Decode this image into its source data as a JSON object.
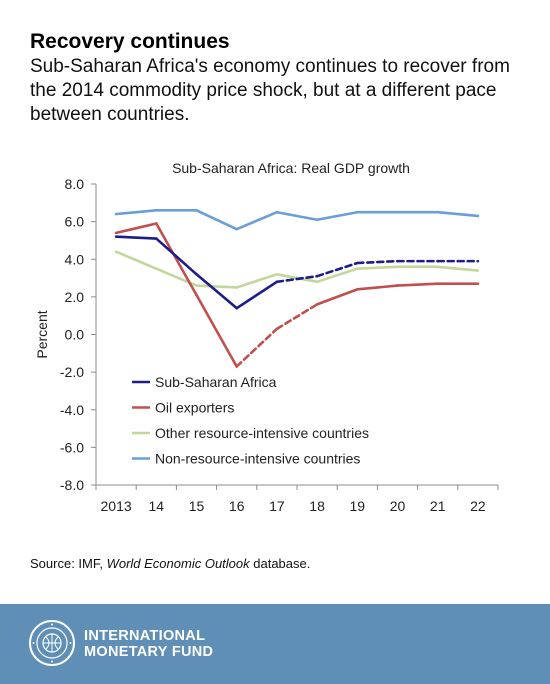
{
  "headline": "Recovery continues",
  "subhead": "Sub-Saharan Africa's economy continues to recover from the 2014 commodity price shock, but at a different pace between countries.",
  "source": {
    "prefix": "Source: IMF, ",
    "italic": "World Economic Outlook",
    "suffix": " database."
  },
  "footer": {
    "org_line1": "INTERNATIONAL",
    "org_line2": "MONETARY FUND",
    "background_color": "#5f8fb6",
    "logo_icon": "imf-seal-icon"
  },
  "chart_data": {
    "type": "line",
    "title": "Sub-Saharan Africa: Real GDP growth",
    "xlabel": "",
    "ylabel": "Percent",
    "categories": [
      "2013",
      "14",
      "15",
      "16",
      "17",
      "18",
      "19",
      "20",
      "21",
      "22"
    ],
    "ylim": [
      -8.0,
      8.0
    ],
    "yticks": [
      "8.0",
      "6.0",
      "4.0",
      "2.0",
      "0.0",
      "-2.0",
      "-4.0",
      "-6.0",
      "-8.0"
    ],
    "ytick_values": [
      8,
      6,
      4,
      2,
      0,
      -2,
      -4,
      -6,
      -8
    ],
    "grid": false,
    "legend_position": "bottom-left",
    "projection_note": "dashed segments for projections",
    "series": [
      {
        "name": "Sub-Saharan Africa",
        "color": "#1c1c8c",
        "values": [
          5.2,
          5.1,
          3.2,
          1.4,
          2.8,
          3.1,
          3.8,
          3.9,
          3.9,
          3.9
        ],
        "dashed_from_index": 5
      },
      {
        "name": "Oil exporters",
        "color": "#c0504d",
        "values": [
          5.4,
          5.9,
          2.1,
          -1.7,
          0.3,
          1.6,
          2.4,
          2.6,
          2.7,
          2.7
        ],
        "dashed_from_index": 4,
        "dashed_to_index": 5
      },
      {
        "name": "Other resource-intensive countries",
        "color": "#c3d69b",
        "values": [
          4.4,
          3.5,
          2.6,
          2.5,
          3.2,
          2.8,
          3.5,
          3.6,
          3.6,
          3.4
        ]
      },
      {
        "name": "Non-resource-intensive countries",
        "color": "#6b9ed8",
        "values": [
          6.4,
          6.6,
          6.6,
          5.6,
          6.5,
          6.1,
          6.5,
          6.5,
          6.5,
          6.3
        ]
      }
    ]
  }
}
